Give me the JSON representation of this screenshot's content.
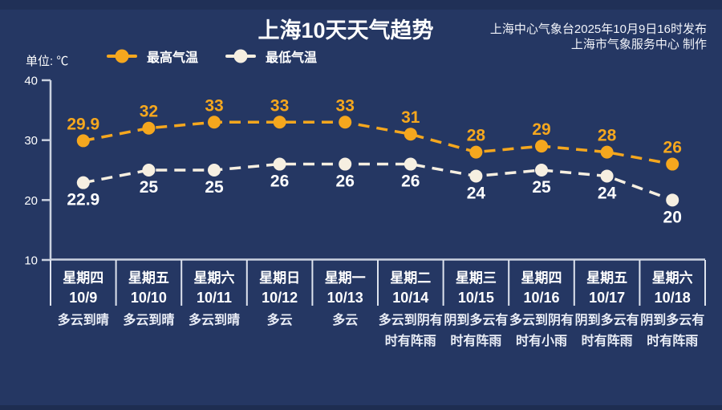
{
  "header": {
    "title": "上海10天天气趋势",
    "publisher_line1": "上海中心气象台2025年10月9日16时发布",
    "publisher_line2": "上海市气象服务中心 制作"
  },
  "chart_data": {
    "type": "line",
    "title": "上海10天天气趋势",
    "unit_label": "单位: ℃",
    "ylim": [
      10,
      40
    ],
    "yticks": [
      40,
      30,
      20,
      10
    ],
    "grid": false,
    "legend_position": "top-left",
    "line_style": "dashed",
    "categories": [
      {
        "weekday": "星期四",
        "date": "10/9",
        "weather_lines": [
          "多云到晴"
        ]
      },
      {
        "weekday": "星期五",
        "date": "10/10",
        "weather_lines": [
          "多云到晴"
        ]
      },
      {
        "weekday": "星期六",
        "date": "10/11",
        "weather_lines": [
          "多云到晴"
        ]
      },
      {
        "weekday": "星期日",
        "date": "10/12",
        "weather_lines": [
          "多云"
        ]
      },
      {
        "weekday": "星期一",
        "date": "10/13",
        "weather_lines": [
          "多云"
        ]
      },
      {
        "weekday": "星期二",
        "date": "10/14",
        "weather_lines": [
          "多云到阴有",
          "时有阵雨"
        ]
      },
      {
        "weekday": "星期三",
        "date": "10/15",
        "weather_lines": [
          "阴到多云有",
          "时有阵雨"
        ]
      },
      {
        "weekday": "星期四",
        "date": "10/16",
        "weather_lines": [
          "多云到阴有",
          "时有小雨"
        ]
      },
      {
        "weekday": "星期五",
        "date": "10/17",
        "weather_lines": [
          "阴到多云有",
          "时有阵雨"
        ]
      },
      {
        "weekday": "星期六",
        "date": "10/18",
        "weather_lines": [
          "阴到多云有",
          "时有阵雨"
        ]
      }
    ],
    "series": [
      {
        "name": "最高气温",
        "color": "#F5A71E",
        "label_color": "#F5A71E",
        "label_position": "above",
        "values": [
          29.9,
          32,
          33,
          33,
          33,
          31,
          28,
          29,
          28,
          26
        ]
      },
      {
        "name": "最低气温",
        "color": "#F6EFE1",
        "label_color": "#FFFFFF",
        "label_position": "below",
        "values": [
          22.9,
          25,
          25,
          26,
          26,
          26,
          24,
          25,
          24,
          20
        ]
      }
    ]
  },
  "colors": {
    "background": "#253763",
    "axis": "#CBD2E0",
    "divider": "#DEE3EE",
    "day_text": "#FFFFFF",
    "weather_text": "#E9EDF6"
  }
}
